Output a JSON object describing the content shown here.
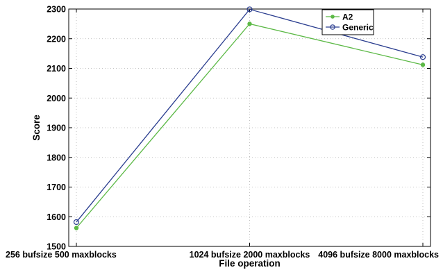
{
  "chart_data": {
    "type": "line",
    "title": "",
    "xlabel": "File operation",
    "ylabel": "Score",
    "categories": [
      "256 bufsize 500 maxblocks",
      "1024 bufsize 2000 maxblocks",
      "4096 bufsize 8000 maxblocks"
    ],
    "ylim": [
      1500,
      2300
    ],
    "yticks": [
      1500,
      1600,
      1700,
      1800,
      1900,
      2000,
      2100,
      2200,
      2300
    ],
    "grid": true,
    "legend_position": "top-right",
    "series": [
      {
        "name": "A2",
        "values": [
          1562,
          2250,
          2112
        ],
        "color": "#5cb946",
        "marker": "filled-dot"
      },
      {
        "name": "Generic",
        "values": [
          1582,
          2299,
          2138
        ],
        "color": "#2a3d8f",
        "marker": "open-circle"
      }
    ]
  }
}
